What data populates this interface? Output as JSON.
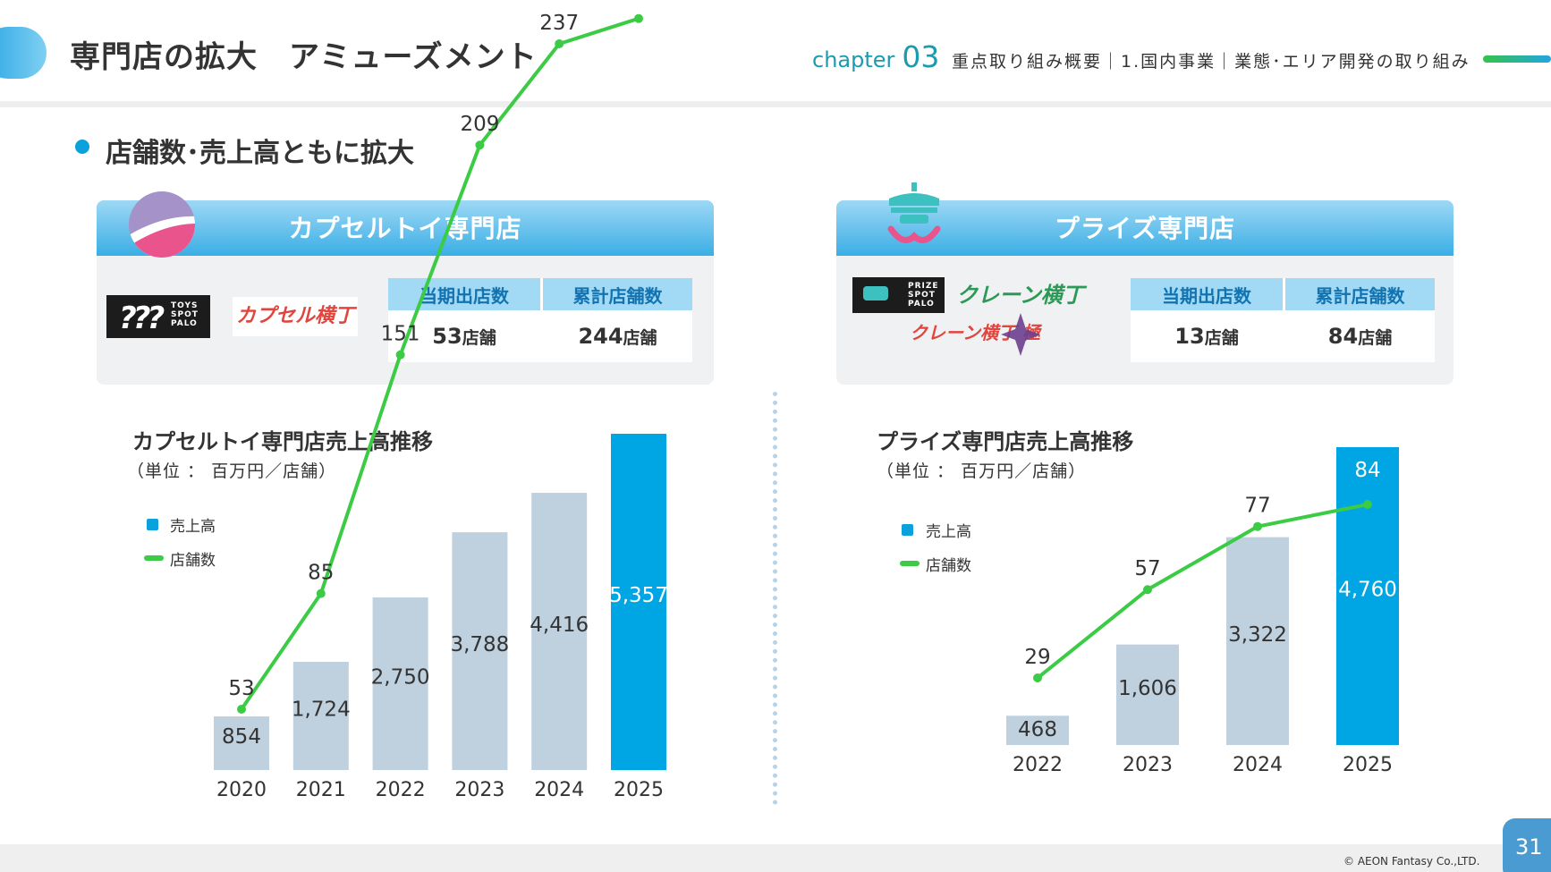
{
  "header": {
    "title": "専門店の拡大　アミューズメント",
    "chapter_word": "chapter",
    "chapter_num": "03",
    "breadcrumb": "重点取り組み概要｜1.国内事業｜業態･エリア開発の取り組み"
  },
  "headline": "店舗数･売上高ともに拡大",
  "panels": [
    {
      "title": "カプセルトイ専門店",
      "logos": [
        "TOYS SPOT PALO",
        "カプセル横丁"
      ],
      "col_new": "当期出店数",
      "col_total": "累計店舗数",
      "new_value": "53",
      "total_value": "244",
      "unit": "店舗"
    },
    {
      "title": "プライズ専門店",
      "logos": [
        "PRIZE SPOT PALO",
        "クレーン横丁",
        "クレーン横丁 極"
      ],
      "col_new": "当期出店数",
      "col_total": "累計店舗数",
      "new_value": "13",
      "total_value": "84",
      "unit": "店舗"
    }
  ],
  "charts": [
    {
      "title": "カプセルトイ専門店売上高推移",
      "unit": "（単位 ： 百万円／店舗）",
      "legend_sales": "売上高",
      "legend_stores": "店舗数"
    },
    {
      "title": "プライズ専門店売上高推移",
      "unit": "（単位 ： 百万円／店舗）",
      "legend_sales": "売上高",
      "legend_stores": "店舗数"
    }
  ],
  "chart_data": [
    {
      "type": "bar",
      "title": "カプセルトイ専門店売上高推移",
      "subtitle": "（単位 ： 百万円／店舗）",
      "categories": [
        "2020",
        "2021",
        "2022",
        "2023",
        "2024",
        "2025"
      ],
      "series": [
        {
          "name": "売上高",
          "type": "bar",
          "values": [
            854,
            1724,
            2750,
            3788,
            4416,
            5357
          ]
        },
        {
          "name": "店舗数",
          "type": "line",
          "values": [
            53,
            85,
            151,
            209,
            237,
            244
          ]
        }
      ],
      "highlight_category": "2025",
      "legend": "left",
      "grid": false,
      "colors": {
        "bar": "#bfd0de",
        "highlight": "#00a5e3",
        "line": "#3ccb45"
      }
    },
    {
      "type": "bar",
      "title": "プライズ専門店売上高推移",
      "subtitle": "（単位 ： 百万円／店舗）",
      "categories": [
        "2022",
        "2023",
        "2024",
        "2025"
      ],
      "series": [
        {
          "name": "売上高",
          "type": "bar",
          "values": [
            468,
            1606,
            3322,
            4760
          ]
        },
        {
          "name": "店舗数",
          "type": "line",
          "values": [
            29,
            57,
            77,
            84
          ]
        }
      ],
      "highlight_category": "2025",
      "legend": "left",
      "grid": false,
      "colors": {
        "bar": "#bfd0de",
        "highlight": "#00a5e3",
        "line": "#3ccb45"
      }
    }
  ],
  "footer": {
    "copyright": "© AEON Fantasy Co.,LTD.",
    "page": "31"
  }
}
